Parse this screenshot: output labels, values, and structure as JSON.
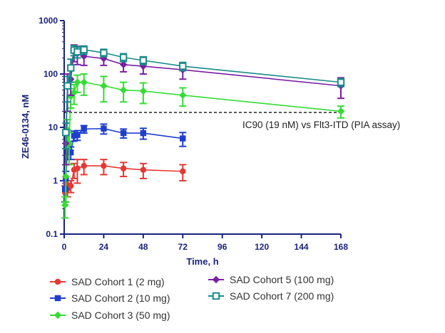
{
  "chart_data": {
    "type": "line",
    "title": "",
    "xlabel": "Time, h",
    "ylabel": "ZE46-0134, nM",
    "xlim": [
      0,
      168
    ],
    "ylim": [
      0.1,
      1000
    ],
    "yscale": "log",
    "xticks": [
      0,
      24,
      48,
      72,
      96,
      120,
      144,
      168
    ],
    "yticks": [
      0.1,
      1,
      10,
      100,
      1000
    ],
    "ytick_labels": [
      "0.1",
      "1",
      "10",
      "100",
      "1000"
    ],
    "grid": false,
    "legend_position": "bottom",
    "reference_line": {
      "y": 19,
      "x_range": [
        0,
        168
      ],
      "style": "dashed",
      "label": "IC90 (19 nM) vs Flt3-ITD (PIA assay)"
    },
    "series": [
      {
        "name": "SAD Cohort 1 (2 mg)",
        "color": "#e53935",
        "marker": "circle",
        "x": [
          0.5,
          1,
          2,
          4,
          6,
          8,
          12,
          24,
          36,
          48,
          72
        ],
        "y": [
          0.6,
          0.9,
          0.7,
          0.8,
          1.6,
          1.7,
          1.9,
          1.9,
          1.7,
          1.6,
          1.5
        ],
        "err": [
          0.2,
          0.3,
          0.2,
          0.2,
          0.5,
          0.8,
          0.6,
          0.6,
          0.5,
          0.5,
          0.5
        ]
      },
      {
        "name": "SAD Cohort 2 (10 mg)",
        "color": "#1e3ecf",
        "marker": "square",
        "x": [
          0.5,
          1,
          2,
          4,
          6,
          8,
          12,
          24,
          36,
          48,
          72
        ],
        "y": [
          0.7,
          1.1,
          3.5,
          3.4,
          7,
          7.2,
          9.3,
          9.5,
          7.8,
          7.8,
          6.2
        ],
        "err": [
          0.3,
          0.4,
          1,
          0.9,
          1.5,
          1.5,
          1.5,
          2,
          1.5,
          1.8,
          1.8
        ]
      },
      {
        "name": "SAD Cohort 3 (50 mg)",
        "color": "#33dd33",
        "marker": "diamond",
        "x": [
          0.5,
          1,
          2,
          3,
          4,
          6,
          8,
          12,
          24,
          36,
          48,
          72,
          168
        ],
        "y": [
          0.35,
          1.2,
          9,
          5,
          38,
          45,
          70,
          70,
          60,
          50,
          48,
          40,
          20
        ],
        "err": [
          0.15,
          0.8,
          5,
          3,
          15,
          18,
          25,
          30,
          30,
          20,
          20,
          15,
          5
        ]
      },
      {
        "name": "SAD Cohort 5 (100 mg)",
        "color": "#7b1fa2",
        "marker": "diamond",
        "x": [
          1,
          2,
          4,
          6,
          8,
          12,
          24,
          36,
          48,
          72,
          168
        ],
        "y": [
          5,
          60,
          80,
          260,
          240,
          215,
          195,
          150,
          140,
          120,
          60
        ],
        "err": [
          3,
          40,
          40,
          90,
          90,
          70,
          50,
          40,
          40,
          40,
          25
        ]
      },
      {
        "name": "SAD Cohort 7 (200 mg)",
        "color": "#1b8a8a",
        "marker": "square-open",
        "x": [
          1,
          2,
          4,
          6,
          8,
          12,
          24,
          36,
          48,
          72,
          168
        ],
        "y": [
          8,
          60,
          130,
          280,
          260,
          285,
          250,
          205,
          180,
          140,
          70
        ],
        "err": [
          4,
          30,
          60,
          60,
          60,
          50,
          40,
          35,
          30,
          25,
          12
        ]
      }
    ]
  }
}
